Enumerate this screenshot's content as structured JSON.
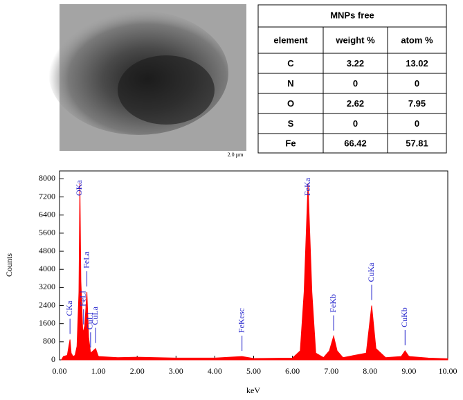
{
  "image": {
    "scale_label": "2.0 µm"
  },
  "table": {
    "title": "MNPs free",
    "columns": [
      "element",
      "weight %",
      "atom %"
    ],
    "rows": [
      [
        "C",
        3.22,
        13.02
      ],
      [
        "N",
        0,
        0
      ],
      [
        "O",
        2.62,
        7.95
      ],
      [
        "S",
        0,
        0
      ],
      [
        "Fe",
        66.42,
        57.81
      ]
    ]
  },
  "chart_data": {
    "type": "area",
    "x_label": "keV",
    "y_label": "Counts",
    "color": "#ff0000",
    "x": [
      0.05,
      0.1,
      0.2,
      0.27,
      0.3,
      0.35,
      0.4,
      0.45,
      0.5,
      0.525,
      0.55,
      0.6,
      0.65,
      0.705,
      0.75,
      0.8,
      0.93,
      1.0,
      1.5,
      2.0,
      3.0,
      4.0,
      4.7,
      5.0,
      6.0,
      6.2,
      6.3,
      6.4,
      6.5,
      6.6,
      6.8,
      6.95,
      7.06,
      7.15,
      7.3,
      7.9,
      8.04,
      8.15,
      8.4,
      8.8,
      8.9,
      9.0,
      9.5,
      10.0
    ],
    "values": [
      0,
      150,
      200,
      900,
      300,
      150,
      200,
      600,
      3000,
      7800,
      3500,
      1200,
      1500,
      3000,
      1000,
      300,
      500,
      150,
      100,
      120,
      80,
      80,
      150,
      60,
      80,
      400,
      3000,
      7800,
      3000,
      300,
      100,
      400,
      1050,
      400,
      100,
      300,
      2400,
      500,
      100,
      150,
      400,
      150,
      80,
      50
    ],
    "xlim": [
      0,
      10
    ],
    "xticks": [
      {
        "value": 0,
        "label": "0.00"
      },
      {
        "value": 1,
        "label": "1.00"
      },
      {
        "value": 2,
        "label": "2.00"
      },
      {
        "value": 3,
        "label": "3.00"
      },
      {
        "value": 4,
        "label": "4.00"
      },
      {
        "value": 5,
        "label": "5.00"
      },
      {
        "value": 6,
        "label": "6.00"
      },
      {
        "value": 7,
        "label": "7.00"
      },
      {
        "value": 8,
        "label": "8.00"
      },
      {
        "value": 9,
        "label": "9.00"
      },
      {
        "value": 10,
        "label": "10.00"
      }
    ],
    "ylim": [
      0,
      8350
    ],
    "yticks": [
      0,
      800,
      1600,
      2400,
      3200,
      4000,
      4800,
      5600,
      6400,
      7200,
      8000
    ],
    "annotations": [
      {
        "text": "CKa",
        "x": 0.27
      },
      {
        "text": "OKa",
        "x": 0.525
      },
      {
        "text": "FeLl",
        "x": 0.62
      },
      {
        "text": "FeLa",
        "x": 0.705
      },
      {
        "text": "CuLl",
        "x": 0.8
      },
      {
        "text": "CuLa",
        "x": 0.93
      },
      {
        "text": "FeKesc",
        "x": 4.7
      },
      {
        "text": "FeKa",
        "x": 6.4
      },
      {
        "text": "FeKb",
        "x": 7.06
      },
      {
        "text": "CuKa",
        "x": 8.04
      },
      {
        "text": "CuKb",
        "x": 8.9
      }
    ]
  }
}
